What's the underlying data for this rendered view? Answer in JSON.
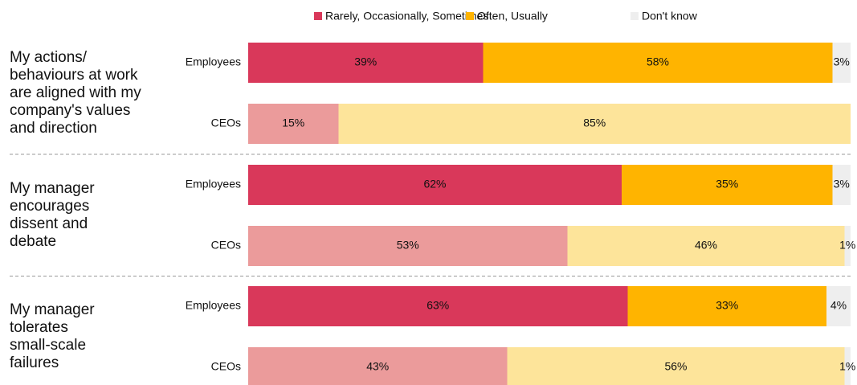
{
  "chart_data": {
    "type": "bar",
    "orientation": "horizontal",
    "stacked": true,
    "legend": "top",
    "xlim": [
      0,
      100
    ],
    "groups": [
      "My actions/\nbehaviours at work\nare aligned with my\ncompany's values\nand direction",
      "My manager\nencourages\ndissent and\ndebate",
      "My manager\ntolerates\nsmall-scale\nfailures"
    ],
    "categories": [
      "Employees",
      "CEOs",
      "Employees",
      "CEOs",
      "Employees",
      "CEOs"
    ],
    "series": [
      {
        "name": "Rarely, Occasionally, Sometimes",
        "color": "#d9385a",
        "light_color": "#eb9b9b",
        "values": [
          39,
          15,
          62,
          53,
          63,
          43
        ],
        "value_labels": [
          "39%",
          "15%",
          "62%",
          "53%",
          "63%",
          "43%"
        ]
      },
      {
        "name": "Often, Usually",
        "color": "#ffb400",
        "light_color": "#fde49a",
        "values": [
          58,
          85,
          35,
          46,
          33,
          56
        ],
        "value_labels": [
          "58%",
          "85%",
          "35%",
          "46%",
          "33%",
          "56%"
        ]
      },
      {
        "name": "Don't know",
        "color": "#eeeeee",
        "light_color": "#eeeeee",
        "values": [
          3,
          null,
          3,
          1,
          4,
          1
        ],
        "value_labels": [
          "3%",
          null,
          "3%",
          "1%",
          "4%",
          "1%"
        ]
      }
    ]
  }
}
